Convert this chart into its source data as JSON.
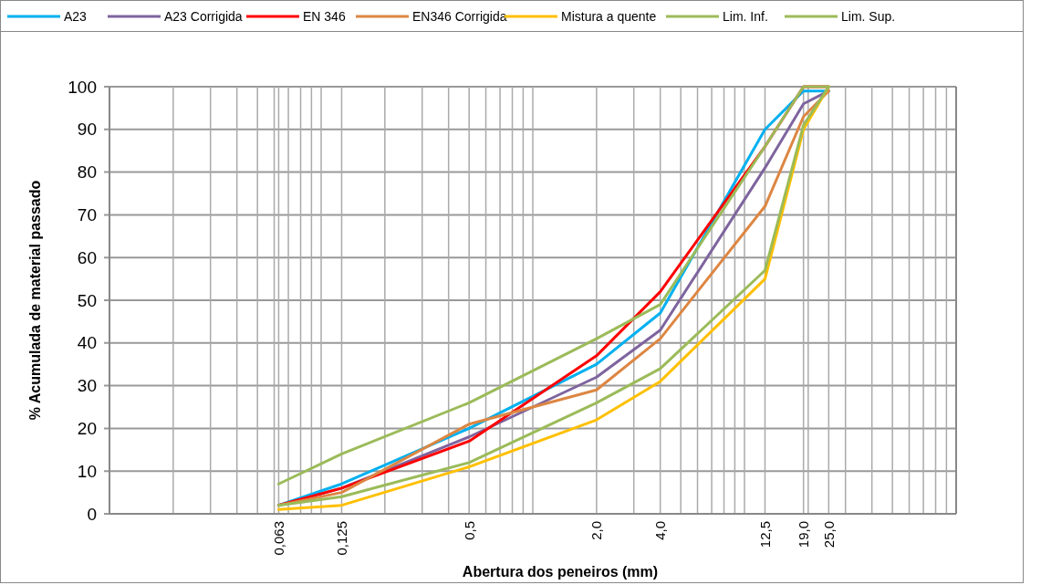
{
  "chart_data": {
    "type": "line",
    "xlabel": "Abertura dos peneiros (mm)",
    "ylabel": "% Acumulada de material passado",
    "log": "x",
    "grid": true,
    "legend": "top",
    "marker": "none",
    "line_style": "solid",
    "x": [
      0.063,
      0.125,
      0.5,
      2,
      4,
      12.5,
      19,
      25
    ],
    "xlim": [
      0.01,
      100
    ],
    "xticks": [
      {
        "value": 0.01,
        "label": null
      },
      {
        "value": 0.02,
        "label": null
      },
      {
        "value": 0.03,
        "label": null
      },
      {
        "value": 0.04,
        "label": null
      },
      {
        "value": 0.05,
        "label": null
      },
      {
        "value": 0.06,
        "label": null
      },
      {
        "value": 0.063,
        "label": "0,063"
      },
      {
        "value": 0.07,
        "label": null
      },
      {
        "value": 0.08,
        "label": null
      },
      {
        "value": 0.09,
        "label": null
      },
      {
        "value": 0.1,
        "label": null
      },
      {
        "value": 0.125,
        "label": "0,125"
      },
      {
        "value": 0.2,
        "label": null
      },
      {
        "value": 0.3,
        "label": null
      },
      {
        "value": 0.4,
        "label": null
      },
      {
        "value": 0.5,
        "label": "0,5"
      },
      {
        "value": 0.6,
        "label": null
      },
      {
        "value": 0.7,
        "label": null
      },
      {
        "value": 0.8,
        "label": null
      },
      {
        "value": 0.9,
        "label": null
      },
      {
        "value": 1,
        "label": null
      },
      {
        "value": 2,
        "label": "2,0"
      },
      {
        "value": 3,
        "label": null
      },
      {
        "value": 4,
        "label": "4,0"
      },
      {
        "value": 5,
        "label": null
      },
      {
        "value": 6,
        "label": null
      },
      {
        "value": 7,
        "label": null
      },
      {
        "value": 8,
        "label": null
      },
      {
        "value": 9,
        "label": null
      },
      {
        "value": 10,
        "label": null
      },
      {
        "value": 12.5,
        "label": "12,5"
      },
      {
        "value": 19,
        "label": "19,0"
      },
      {
        "value": 20,
        "label": null
      },
      {
        "value": 25,
        "label": "25,0"
      },
      {
        "value": 30,
        "label": null
      },
      {
        "value": 40,
        "label": null
      },
      {
        "value": 50,
        "label": null
      },
      {
        "value": 60,
        "label": null
      },
      {
        "value": 70,
        "label": null
      },
      {
        "value": 80,
        "label": null
      },
      {
        "value": 90,
        "label": null
      },
      {
        "value": 100,
        "label": null
      }
    ],
    "ylim": [
      0,
      100
    ],
    "yticks": [
      0,
      10,
      20,
      30,
      40,
      50,
      60,
      70,
      80,
      90,
      100
    ],
    "series": [
      {
        "name": "A23",
        "color": "#00b0f0",
        "values": [
          2,
          7,
          20,
          35,
          47,
          90,
          99,
          99
        ]
      },
      {
        "name": "A23 Corrigida",
        "color": "#7e649e",
        "values": [
          2,
          6,
          18,
          32,
          43,
          81,
          96,
          99
        ]
      },
      {
        "name": "EN 346",
        "color": "#ff0000",
        "values": [
          2,
          6,
          17,
          37,
          52,
          86,
          100,
          100
        ]
      },
      {
        "name": "EN346 Corrigida",
        "color": "#dd8642",
        "values": [
          2,
          5,
          21,
          29,
          41,
          72,
          93,
          99
        ]
      },
      {
        "name": "Mistura a quente",
        "color": "#ffc000",
        "values": [
          1,
          2,
          11,
          22,
          31,
          55,
          90,
          100
        ]
      },
      {
        "name": "Lim. Inf.",
        "color": "#9bbb59",
        "values": [
          2,
          4,
          12,
          26,
          34,
          57,
          91,
          100
        ]
      },
      {
        "name": "Lim. Sup.",
        "color": "#9bbb59",
        "values": [
          7,
          14,
          26,
          41,
          49,
          86,
          100,
          100
        ]
      }
    ]
  }
}
